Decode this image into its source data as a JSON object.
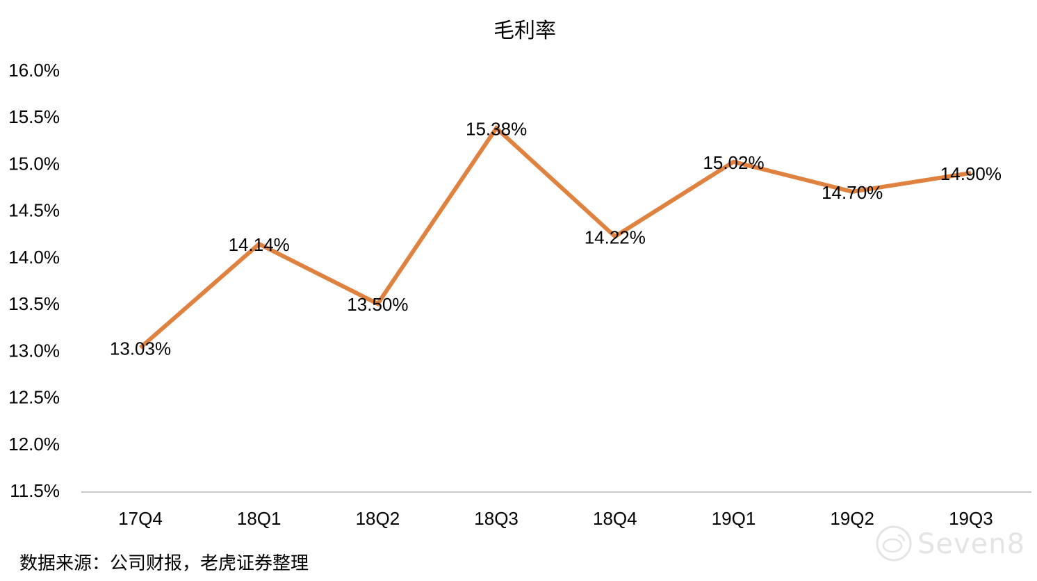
{
  "chart_data": {
    "type": "line",
    "title": "毛利率",
    "categories": [
      "17Q4",
      "18Q1",
      "18Q2",
      "18Q3",
      "18Q4",
      "19Q1",
      "19Q2",
      "19Q3"
    ],
    "series": [
      {
        "values": [
          13.03,
          14.14,
          13.5,
          15.38,
          14.22,
          15.02,
          14.7,
          14.9
        ]
      }
    ],
    "data_labels": [
      "13.03%",
      "14.14%",
      "13.50%",
      "15.38%",
      "14.22%",
      "15.02%",
      "14.70%",
      "14.90%"
    ],
    "yticks": [
      "11.5%",
      "12.0%",
      "12.5%",
      "13.0%",
      "13.5%",
      "14.0%",
      "14.5%",
      "15.0%",
      "15.5%",
      "16.0%"
    ],
    "ylim": [
      11.5,
      16.0
    ],
    "grid": false,
    "line_color": "#E0823F"
  },
  "source_text": "数据来源：公司财报，老虎证券整理",
  "watermark": {
    "text": "Seven8",
    "icon": "weibo-logo-icon"
  }
}
